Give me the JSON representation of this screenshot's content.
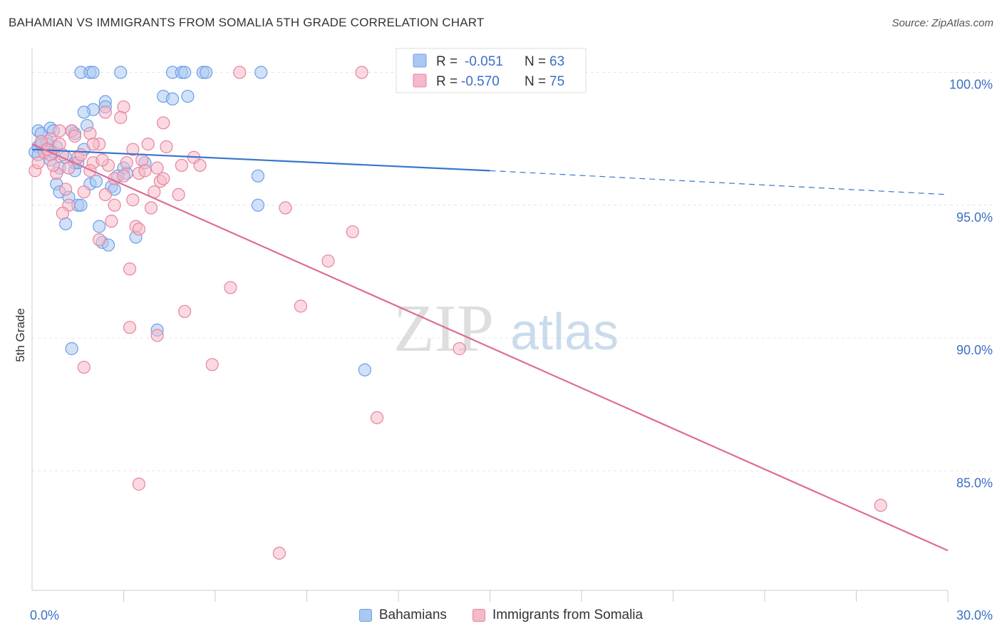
{
  "title": "BAHAMIAN VS IMMIGRANTS FROM SOMALIA 5TH GRADE CORRELATION CHART",
  "source": "Source: ZipAtlas.com",
  "watermark": {
    "zip": "ZIP",
    "atlas": "atlas"
  },
  "chart_data": {
    "type": "scatter",
    "xlabel": "",
    "ylabel": "5th Grade",
    "xlim": [
      0,
      30
    ],
    "ylim": [
      80.5,
      100.9
    ],
    "x_tick_labels": [
      {
        "value": 0,
        "label": "0.0%"
      },
      {
        "value": 30,
        "label": "30.0%"
      }
    ],
    "y_tick_labels": [
      {
        "value": 100,
        "label": "100.0%"
      },
      {
        "value": 95,
        "label": "95.0%"
      },
      {
        "value": 90,
        "label": "90.0%"
      },
      {
        "value": 85,
        "label": "85.0%"
      }
    ],
    "x_minor_ticks": [
      3,
      6,
      9,
      12,
      15,
      18,
      21,
      24,
      27,
      30
    ],
    "legend_stats": [
      {
        "r_label": "R =",
        "r_value": "-0.051",
        "n_label": "N =",
        "n_value": "63"
      },
      {
        "r_label": "R =",
        "r_value": "-0.570",
        "n_label": "N =",
        "n_value": "75"
      }
    ],
    "series": [
      {
        "name": "Bahamians",
        "color": "#6d9ee6",
        "fill": "#aac8f2",
        "trend": {
          "x0": 0,
          "y0": 97.1,
          "x1": 15,
          "y1": 96.3,
          "dash_x1": 30,
          "dash_y1": 95.4,
          "color": "#3876cc"
        },
        "points": [
          [
            1.6,
            100
          ],
          [
            1.9,
            100
          ],
          [
            2.0,
            100
          ],
          [
            2.9,
            100
          ],
          [
            4.6,
            100
          ],
          [
            4.9,
            100
          ],
          [
            5.0,
            100
          ],
          [
            5.6,
            100
          ],
          [
            5.7,
            100
          ],
          [
            7.5,
            100
          ],
          [
            2.4,
            98.9
          ],
          [
            2.4,
            98.7
          ],
          [
            4.3,
            99.1
          ],
          [
            4.6,
            99.0
          ],
          [
            5.1,
            99.1
          ],
          [
            2.0,
            98.6
          ],
          [
            1.7,
            98.5
          ],
          [
            0.2,
            97.8
          ],
          [
            0.3,
            97.7
          ],
          [
            0.5,
            97.4
          ],
          [
            0.6,
            97.9
          ],
          [
            0.7,
            97.8
          ],
          [
            1.3,
            97.8
          ],
          [
            1.4,
            97.7
          ],
          [
            1.8,
            98.0
          ],
          [
            0.2,
            97.2
          ],
          [
            0.4,
            97.1
          ],
          [
            0.5,
            97.3
          ],
          [
            0.8,
            97.2
          ],
          [
            1.7,
            97.1
          ],
          [
            0.6,
            96.7
          ],
          [
            0.9,
            96.4
          ],
          [
            1.1,
            96.8
          ],
          [
            1.4,
            96.3
          ],
          [
            1.4,
            96.6
          ],
          [
            1.9,
            95.8
          ],
          [
            2.1,
            95.9
          ],
          [
            3.0,
            96.4
          ],
          [
            3.1,
            96.2
          ],
          [
            3.7,
            96.6
          ],
          [
            0.8,
            95.8
          ],
          [
            0.9,
            95.5
          ],
          [
            1.2,
            95.3
          ],
          [
            1.5,
            95.0
          ],
          [
            1.6,
            95.0
          ],
          [
            2.6,
            95.7
          ],
          [
            2.7,
            95.6
          ],
          [
            7.4,
            96.1
          ],
          [
            7.4,
            95.0
          ],
          [
            1.1,
            94.3
          ],
          [
            2.2,
            94.2
          ],
          [
            2.3,
            93.6
          ],
          [
            2.5,
            93.5
          ],
          [
            3.4,
            93.8
          ],
          [
            4.1,
            90.3
          ],
          [
            1.3,
            89.6
          ],
          [
            10.9,
            88.8
          ],
          [
            0.1,
            97.0
          ],
          [
            0.2,
            96.9
          ],
          [
            0.3,
            97.3
          ],
          [
            0.7,
            97.0
          ],
          [
            1.5,
            96.6
          ],
          [
            2.8,
            96.1
          ]
        ]
      },
      {
        "name": "Immigrants from Somalia",
        "color": "#e8839e",
        "fill": "#f5b9c9",
        "trend": {
          "x0": 0,
          "y0": 97.3,
          "x1": 30,
          "y1": 82.0,
          "color": "#e06b94"
        },
        "points": [
          [
            6.8,
            100
          ],
          [
            10.8,
            100
          ],
          [
            3.0,
            98.7
          ],
          [
            2.4,
            98.5
          ],
          [
            2.9,
            98.3
          ],
          [
            4.3,
            98.1
          ],
          [
            1.3,
            97.8
          ],
          [
            1.9,
            97.7
          ],
          [
            0.6,
            97.5
          ],
          [
            0.9,
            97.3
          ],
          [
            1.4,
            97.6
          ],
          [
            2.2,
            97.3
          ],
          [
            3.3,
            97.1
          ],
          [
            3.8,
            97.3
          ],
          [
            4.4,
            97.2
          ],
          [
            0.3,
            97.4
          ],
          [
            0.4,
            97.0
          ],
          [
            0.6,
            96.9
          ],
          [
            1.0,
            96.9
          ],
          [
            1.5,
            96.8
          ],
          [
            2.0,
            96.6
          ],
          [
            2.5,
            96.5
          ],
          [
            3.1,
            96.6
          ],
          [
            3.6,
            96.7
          ],
          [
            4.1,
            96.4
          ],
          [
            4.9,
            96.5
          ],
          [
            5.3,
            96.8
          ],
          [
            5.5,
            96.5
          ],
          [
            0.8,
            96.2
          ],
          [
            1.2,
            96.4
          ],
          [
            1.9,
            96.3
          ],
          [
            2.7,
            96.0
          ],
          [
            3.5,
            96.2
          ],
          [
            4.2,
            95.9
          ],
          [
            1.1,
            95.6
          ],
          [
            1.7,
            95.5
          ],
          [
            2.4,
            95.4
          ],
          [
            3.3,
            95.2
          ],
          [
            4.0,
            95.5
          ],
          [
            4.8,
            95.4
          ],
          [
            1.2,
            95.0
          ],
          [
            2.7,
            95.0
          ],
          [
            3.9,
            94.9
          ],
          [
            8.3,
            94.9
          ],
          [
            1.0,
            94.7
          ],
          [
            2.6,
            94.4
          ],
          [
            3.4,
            94.2
          ],
          [
            3.5,
            94.1
          ],
          [
            2.2,
            93.7
          ],
          [
            10.5,
            94.0
          ],
          [
            9.7,
            92.9
          ],
          [
            3.2,
            92.6
          ],
          [
            6.5,
            91.9
          ],
          [
            5.0,
            91.0
          ],
          [
            8.8,
            91.2
          ],
          [
            3.2,
            90.4
          ],
          [
            4.1,
            90.1
          ],
          [
            14.0,
            89.6
          ],
          [
            1.7,
            88.9
          ],
          [
            5.9,
            89.0
          ],
          [
            11.3,
            87.0
          ],
          [
            3.5,
            84.5
          ],
          [
            8.1,
            81.9
          ],
          [
            27.8,
            83.7
          ],
          [
            0.1,
            96.3
          ],
          [
            0.2,
            96.6
          ],
          [
            0.5,
            97.1
          ],
          [
            0.7,
            96.5
          ],
          [
            1.6,
            96.9
          ],
          [
            2.3,
            96.7
          ],
          [
            3.0,
            96.1
          ],
          [
            3.7,
            96.3
          ],
          [
            4.3,
            96.0
          ],
          [
            0.9,
            97.8
          ],
          [
            2.0,
            97.3
          ]
        ]
      }
    ]
  }
}
